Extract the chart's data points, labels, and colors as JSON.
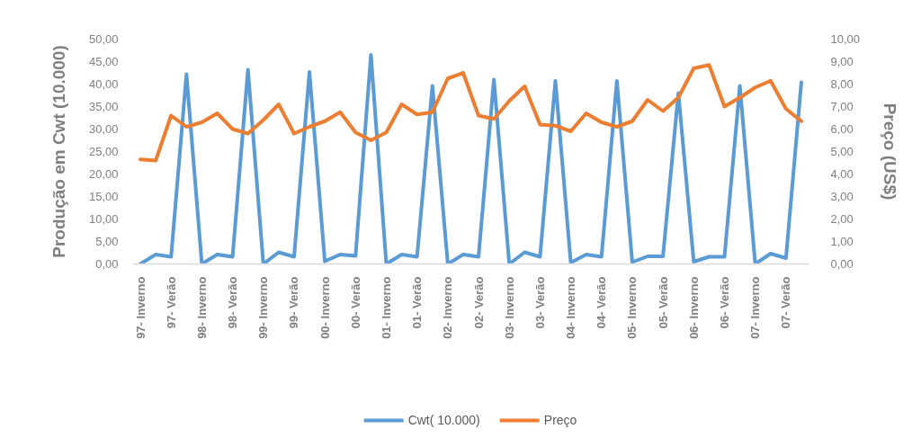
{
  "chart_data": {
    "type": "line",
    "categories": [
      "97- Inverno",
      null,
      "97- Verão",
      null,
      "98- Inverno",
      null,
      "98- Verão",
      null,
      "99- Inverno",
      null,
      "99- Verão",
      null,
      "00- Inverno",
      null,
      "00- Verão",
      null,
      "01- Inverno",
      null,
      "01- Verão",
      null,
      "02- Inverno",
      null,
      "02- Verão",
      null,
      "03- Inverno",
      null,
      "03- Verão",
      null,
      "04- Inverno",
      null,
      "04- Verão",
      null,
      "05- Inverno",
      null,
      "05- Verão",
      null,
      "06- Inverno",
      null,
      "06- Verão",
      null,
      "07- Inverno",
      null,
      "07- Verão",
      null
    ],
    "series": [
      {
        "name": "Cwt( 10.000)",
        "color": "#5b9bd5",
        "values": [
          0.0,
          2.1,
          1.6,
          42.2,
          0.0,
          2.1,
          1.6,
          43.2,
          0.0,
          2.6,
          1.6,
          42.7,
          0.6,
          2.1,
          1.8,
          46.5,
          0.0,
          2.1,
          1.6,
          39.6,
          0.0,
          2.1,
          1.6,
          41.0,
          0.0,
          2.6,
          1.6,
          40.7,
          0.3,
          2.1,
          1.6,
          40.7,
          0.4,
          1.7,
          1.7,
          38.0,
          0.5,
          1.6,
          1.6,
          39.6,
          0.0,
          2.3,
          1.3,
          40.4
        ]
      },
      {
        "name": "Preço",
        "color": "#ed7d31",
        "axis": "y2",
        "values": [
          4.65,
          4.6,
          6.6,
          6.1,
          6.3,
          6.7,
          6.0,
          5.8,
          6.4,
          7.1,
          5.8,
          6.1,
          6.35,
          6.75,
          5.85,
          5.5,
          5.85,
          7.1,
          6.65,
          6.75,
          8.25,
          8.5,
          6.6,
          6.45,
          7.25,
          7.9,
          6.2,
          6.15,
          5.9,
          6.7,
          6.3,
          6.1,
          6.35,
          7.3,
          6.8,
          7.4,
          8.7,
          8.85,
          7.0,
          7.4,
          7.85,
          8.15,
          6.9,
          6.35
        ]
      }
    ],
    "ylabel": "Produção em Cwt (10.000)",
    "y2label": "Preço (US$)",
    "ylim": [
      0,
      50
    ],
    "yticks": [
      {
        "value": 0,
        "label": "0,00"
      },
      {
        "value": 5,
        "label": "5,00"
      },
      {
        "value": 10,
        "label": "10,00"
      },
      {
        "value": 15,
        "label": "15,00"
      },
      {
        "value": 20,
        "label": "20,00"
      },
      {
        "value": 25,
        "label": "25,00"
      },
      {
        "value": 30,
        "label": "30,00"
      },
      {
        "value": 35,
        "label": "35,00"
      },
      {
        "value": 40,
        "label": "40,00"
      },
      {
        "value": 45,
        "label": "45,00"
      },
      {
        "value": 50,
        "label": "50,00"
      }
    ],
    "y2lim": [
      0,
      10
    ],
    "y2ticks": [
      {
        "value": 0,
        "label": "0,00"
      },
      {
        "value": 1,
        "label": "1,00"
      },
      {
        "value": 2,
        "label": "2,00"
      },
      {
        "value": 3,
        "label": "3,00"
      },
      {
        "value": 4,
        "label": "4,00"
      },
      {
        "value": 5,
        "label": "5,00"
      },
      {
        "value": 6,
        "label": "6,00"
      },
      {
        "value": 7,
        "label": "7,00"
      },
      {
        "value": 8,
        "label": "8,00"
      },
      {
        "value": 9,
        "label": "9,00"
      },
      {
        "value": 10,
        "label": "10,00"
      }
    ],
    "grid": false,
    "legend": "bottom",
    "line_style": "solid"
  }
}
